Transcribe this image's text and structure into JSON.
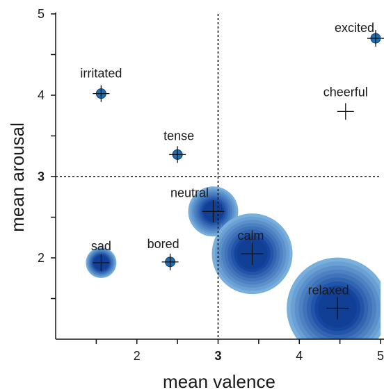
{
  "chart_data": {
    "type": "scatter",
    "title": "",
    "xlabel": "mean valence",
    "ylabel": "mean arousal",
    "xlim": [
      1,
      5
    ],
    "ylim": [
      1,
      5
    ],
    "x_ticks": [
      {
        "value": 1.5,
        "label": ""
      },
      {
        "value": 2,
        "label": "2"
      },
      {
        "value": 2.5,
        "label": ""
      },
      {
        "value": 3,
        "label": "3",
        "bold": true
      },
      {
        "value": 3.5,
        "label": ""
      },
      {
        "value": 4,
        "label": "4"
      },
      {
        "value": 4.5,
        "label": ""
      },
      {
        "value": 5,
        "label": "5"
      }
    ],
    "y_ticks": [
      {
        "value": 1.5,
        "label": ""
      },
      {
        "value": 2,
        "label": "2"
      },
      {
        "value": 2.5,
        "label": ""
      },
      {
        "value": 3,
        "label": "3",
        "bold": true
      },
      {
        "value": 3.5,
        "label": ""
      },
      {
        "value": 4,
        "label": "4"
      },
      {
        "value": 4.5,
        "label": ""
      },
      {
        "value": 5,
        "label": "5"
      }
    ],
    "reference_lines": {
      "x": 3,
      "y": 3,
      "style": "dotted"
    },
    "grid": false,
    "marker": "plus",
    "bubble_color": "#1f5fa8",
    "points": [
      {
        "label": "excited",
        "x": 4.94,
        "y": 4.7,
        "size": 1
      },
      {
        "label": "irritated",
        "x": 1.56,
        "y": 4.02,
        "size": 1
      },
      {
        "label": "cheerful",
        "x": 4.57,
        "y": 3.8,
        "size": 0
      },
      {
        "label": "tense",
        "x": 2.5,
        "y": 3.27,
        "size": 1
      },
      {
        "label": "neutral",
        "x": 2.94,
        "y": 2.57,
        "size": 3
      },
      {
        "label": "sad",
        "x": 1.56,
        "y": 1.94,
        "size": 2
      },
      {
        "label": "bored",
        "x": 2.41,
        "y": 1.95,
        "size": 1
      },
      {
        "label": "calm",
        "x": 3.42,
        "y": 2.05,
        "size": 5
      },
      {
        "label": "relaxed",
        "x": 4.47,
        "y": 1.38,
        "size": 6
      }
    ]
  }
}
